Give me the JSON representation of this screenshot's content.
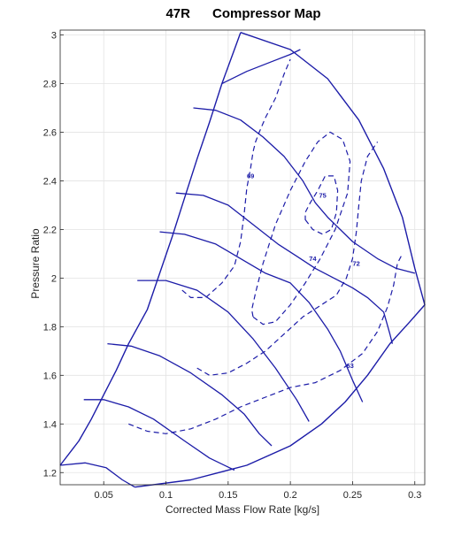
{
  "chart_data": {
    "type": "line",
    "title": "47R      Compressor Map",
    "xlabel": "Corrected Mass Flow Rate [kg/s]",
    "ylabel": "Pressure Ratio",
    "xlim": [
      0.015,
      0.308
    ],
    "ylim": [
      1.15,
      3.02
    ],
    "grid": true,
    "line_color": "#1c1ca8",
    "x_ticks": [
      "0.05",
      "0.1",
      "0.15",
      "0.2",
      "0.25",
      "0.3"
    ],
    "y_ticks": [
      "1.2",
      "1.4",
      "1.6",
      "1.8",
      "2",
      "2.2",
      "2.4",
      "2.6",
      "2.8",
      "3"
    ],
    "surge_line": [
      [
        0.015,
        1.23
      ],
      [
        0.03,
        1.33
      ],
      [
        0.04,
        1.42
      ],
      [
        0.05,
        1.52
      ],
      [
        0.06,
        1.62
      ],
      [
        0.07,
        1.73
      ],
      [
        0.085,
        1.87
      ],
      [
        0.095,
        2.02
      ],
      [
        0.105,
        2.17
      ],
      [
        0.115,
        2.33
      ],
      [
        0.125,
        2.49
      ],
      [
        0.135,
        2.64
      ],
      [
        0.145,
        2.8
      ],
      [
        0.155,
        2.94
      ],
      [
        0.16,
        3.01
      ]
    ],
    "choke_line": [
      [
        0.16,
        3.01
      ],
      [
        0.2,
        2.94
      ],
      [
        0.23,
        2.82
      ],
      [
        0.255,
        2.65
      ],
      [
        0.275,
        2.45
      ],
      [
        0.29,
        2.25
      ],
      [
        0.3,
        2.04
      ],
      [
        0.308,
        1.89
      ],
      [
        0.296,
        1.82
      ],
      [
        0.28,
        1.73
      ],
      [
        0.262,
        1.6
      ],
      [
        0.244,
        1.49
      ],
      [
        0.225,
        1.4
      ],
      [
        0.2,
        1.31
      ],
      [
        0.165,
        1.23
      ],
      [
        0.12,
        1.17
      ],
      [
        0.075,
        1.14
      ]
    ],
    "speed_lines": [
      {
        "points": [
          [
            0.015,
            1.23
          ],
          [
            0.035,
            1.24
          ],
          [
            0.052,
            1.22
          ],
          [
            0.065,
            1.17
          ],
          [
            0.075,
            1.14
          ]
        ]
      },
      {
        "points": [
          [
            0.034,
            1.5
          ],
          [
            0.05,
            1.5
          ],
          [
            0.07,
            1.47
          ],
          [
            0.09,
            1.42
          ],
          [
            0.115,
            1.33
          ],
          [
            0.135,
            1.26
          ],
          [
            0.155,
            1.21
          ]
        ]
      },
      {
        "points": [
          [
            0.053,
            1.73
          ],
          [
            0.072,
            1.72
          ],
          [
            0.095,
            1.68
          ],
          [
            0.12,
            1.61
          ],
          [
            0.145,
            1.52
          ],
          [
            0.163,
            1.44
          ],
          [
            0.175,
            1.36
          ],
          [
            0.185,
            1.31
          ]
        ]
      },
      {
        "points": [
          [
            0.077,
            1.99
          ],
          [
            0.1,
            1.99
          ],
          [
            0.125,
            1.95
          ],
          [
            0.15,
            1.86
          ],
          [
            0.17,
            1.75
          ],
          [
            0.188,
            1.63
          ],
          [
            0.205,
            1.5
          ],
          [
            0.215,
            1.41
          ]
        ]
      },
      {
        "points": [
          [
            0.095,
            2.19
          ],
          [
            0.115,
            2.18
          ],
          [
            0.14,
            2.14
          ],
          [
            0.16,
            2.08
          ],
          [
            0.18,
            2.02
          ],
          [
            0.2,
            1.98
          ],
          [
            0.215,
            1.9
          ],
          [
            0.23,
            1.79
          ],
          [
            0.24,
            1.7
          ],
          [
            0.25,
            1.58
          ],
          [
            0.258,
            1.49
          ]
        ]
      },
      {
        "points": [
          [
            0.108,
            2.35
          ],
          [
            0.13,
            2.34
          ],
          [
            0.15,
            2.3
          ],
          [
            0.17,
            2.22
          ],
          [
            0.19,
            2.14
          ],
          [
            0.205,
            2.09
          ],
          [
            0.22,
            2.04
          ],
          [
            0.235,
            2
          ],
          [
            0.25,
            1.96
          ],
          [
            0.262,
            1.92
          ],
          [
            0.275,
            1.86
          ],
          [
            0.28,
            1.77
          ],
          [
            0.282,
            1.73
          ]
        ]
      },
      {
        "points": [
          [
            0.122,
            2.7
          ],
          [
            0.14,
            2.69
          ],
          [
            0.16,
            2.65
          ],
          [
            0.178,
            2.58
          ],
          [
            0.195,
            2.5
          ],
          [
            0.21,
            2.4
          ],
          [
            0.22,
            2.31
          ],
          [
            0.23,
            2.25
          ],
          [
            0.25,
            2.15
          ],
          [
            0.27,
            2.08
          ],
          [
            0.285,
            2.04
          ],
          [
            0.3,
            2.02
          ]
        ]
      },
      {
        "points": [
          [
            0.145,
            2.8
          ],
          [
            0.165,
            2.85
          ],
          [
            0.185,
            2.89
          ],
          [
            0.2,
            2.92
          ],
          [
            0.208,
            2.94
          ]
        ]
      }
    ],
    "efficiency_islands": [
      {
        "label": "75",
        "closed": true,
        "points": [
          [
            0.212,
            2.24
          ],
          [
            0.218,
            2.2
          ],
          [
            0.226,
            2.18
          ],
          [
            0.233,
            2.2
          ],
          [
            0.237,
            2.27
          ],
          [
            0.238,
            2.36
          ],
          [
            0.235,
            2.42
          ],
          [
            0.228,
            2.42
          ],
          [
            0.222,
            2.36
          ],
          [
            0.216,
            2.31
          ],
          [
            0.212,
            2.27
          ]
        ]
      },
      {
        "label": "74",
        "closed": true,
        "points": [
          [
            0.17,
            1.84
          ],
          [
            0.178,
            1.81
          ],
          [
            0.188,
            1.82
          ],
          [
            0.2,
            1.89
          ],
          [
            0.212,
            1.98
          ],
          [
            0.224,
            2.08
          ],
          [
            0.236,
            2.2
          ],
          [
            0.246,
            2.35
          ],
          [
            0.248,
            2.48
          ],
          [
            0.242,
            2.57
          ],
          [
            0.232,
            2.6
          ],
          [
            0.222,
            2.56
          ],
          [
            0.212,
            2.48
          ],
          [
            0.2,
            2.36
          ],
          [
            0.188,
            2.22
          ],
          [
            0.178,
            2.06
          ],
          [
            0.172,
            1.94
          ],
          [
            0.169,
            1.87
          ]
        ]
      },
      {
        "label": "72",
        "closed": false,
        "points": [
          [
            0.125,
            1.63
          ],
          [
            0.135,
            1.6
          ],
          [
            0.15,
            1.61
          ],
          [
            0.165,
            1.65
          ],
          [
            0.18,
            1.7
          ],
          [
            0.195,
            1.77
          ],
          [
            0.21,
            1.84
          ],
          [
            0.225,
            1.89
          ],
          [
            0.237,
            1.93
          ],
          [
            0.245,
            2
          ],
          [
            0.25,
            2.08
          ],
          [
            0.253,
            2.19
          ],
          [
            0.255,
            2.3
          ],
          [
            0.257,
            2.4
          ],
          [
            0.262,
            2.5
          ],
          [
            0.27,
            2.56
          ]
        ]
      },
      {
        "label": "69",
        "closed": false,
        "points": [
          [
            0.113,
            1.95
          ],
          [
            0.12,
            1.92
          ],
          [
            0.132,
            1.92
          ],
          [
            0.145,
            1.98
          ],
          [
            0.155,
            2.05
          ],
          [
            0.16,
            2.15
          ],
          [
            0.163,
            2.27
          ],
          [
            0.165,
            2.37
          ],
          [
            0.168,
            2.45
          ],
          [
            0.17,
            2.52
          ],
          [
            0.172,
            2.56
          ],
          [
            0.175,
            2.6
          ],
          [
            0.18,
            2.66
          ],
          [
            0.188,
            2.74
          ],
          [
            0.195,
            2.84
          ],
          [
            0.2,
            2.9
          ]
        ]
      },
      {
        "label": "63",
        "closed": false,
        "points": [
          [
            0.07,
            1.4
          ],
          [
            0.085,
            1.37
          ],
          [
            0.1,
            1.36
          ],
          [
            0.12,
            1.38
          ],
          [
            0.14,
            1.42
          ],
          [
            0.16,
            1.47
          ],
          [
            0.18,
            1.51
          ],
          [
            0.2,
            1.55
          ],
          [
            0.22,
            1.57
          ],
          [
            0.24,
            1.62
          ],
          [
            0.258,
            1.69
          ],
          [
            0.27,
            1.78
          ],
          [
            0.278,
            1.88
          ],
          [
            0.283,
            1.97
          ],
          [
            0.286,
            2.06
          ],
          [
            0.29,
            2.1
          ]
        ]
      }
    ],
    "efficiency_labels": [
      {
        "text": "69",
        "x": 0.168,
        "y": 2.41
      },
      {
        "text": "75",
        "x": 0.226,
        "y": 2.33
      },
      {
        "text": "74",
        "x": 0.218,
        "y": 2.07
      },
      {
        "text": "72",
        "x": 0.253,
        "y": 2.05
      },
      {
        "text": "63",
        "x": 0.248,
        "y": 1.63
      }
    ]
  }
}
